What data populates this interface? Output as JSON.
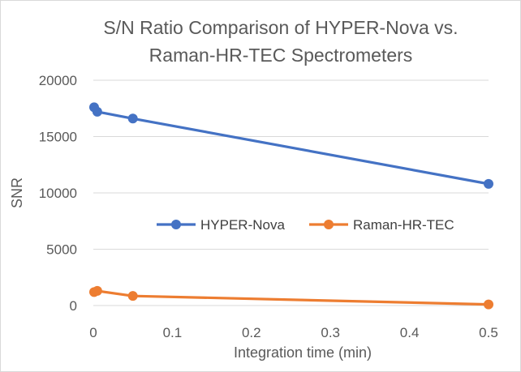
{
  "chart_data": {
    "type": "line",
    "title_lines": [
      "S/N Ratio Comparison of HYPER-Nova vs.",
      "Raman-HR-TEC Spectrometers"
    ],
    "xlabel": "Integration time (min)",
    "ylabel": "SNR",
    "xlim": [
      0,
      0.5
    ],
    "ylim": [
      0,
      20000
    ],
    "x_ticks": [
      0,
      0.1,
      0.2,
      0.3,
      0.4,
      0.5
    ],
    "x_tick_labels": [
      "0",
      "0.1",
      "0.2",
      "0.3",
      "0.4",
      "0.5"
    ],
    "y_ticks": [
      0,
      5000,
      10000,
      15000,
      20000
    ],
    "y_tick_labels": [
      "0",
      "5000",
      "10000",
      "15000",
      "20000"
    ],
    "grid": true,
    "legend_position": "center",
    "series": [
      {
        "name": "HYPER-Nova",
        "color": "#4472C4",
        "x": [
          0.001,
          0.005,
          0.05,
          0.5
        ],
        "y": [
          17600,
          17200,
          16600,
          10800
        ]
      },
      {
        "name": "Raman-HR-TEC",
        "color": "#ED7D31",
        "x": [
          0.001,
          0.005,
          0.05,
          0.5
        ],
        "y": [
          1200,
          1300,
          850,
          100
        ]
      }
    ]
  }
}
